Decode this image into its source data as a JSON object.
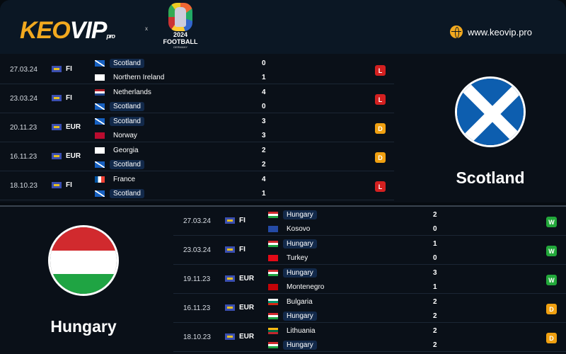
{
  "header": {
    "logo": "KEOVIP",
    "logo_suffix": "pro",
    "separator": "x",
    "euro_year": "2024",
    "euro_word": "FOOTBALL",
    "euro_country": "GERMANY",
    "site": "www.keovip.pro"
  },
  "colors": {
    "win": "#22a83a",
    "draw": "#f0a010",
    "loss": "#d42020",
    "accent": "#f2a91f"
  },
  "scotland": {
    "name": "Scotland",
    "matches": [
      {
        "date": "27.03.24",
        "comp": "FI",
        "home": "Scotland",
        "home_flag": "scotland",
        "away": "Northern Ireland",
        "away_flag": "england",
        "hs": "0",
        "as": "1",
        "res": "L",
        "hl": "home"
      },
      {
        "date": "23.03.24",
        "comp": "FI",
        "home": "Netherlands",
        "home_flag": "netherlands",
        "away": "Scotland",
        "away_flag": "scotland",
        "hs": "4",
        "as": "0",
        "res": "L",
        "hl": "away"
      },
      {
        "date": "20.11.23",
        "comp": "EUR",
        "home": "Scotland",
        "home_flag": "scotland",
        "away": "Norway",
        "away_flag": "norway",
        "hs": "3",
        "as": "3",
        "res": "D",
        "hl": "home"
      },
      {
        "date": "16.11.23",
        "comp": "EUR",
        "home": "Georgia",
        "home_flag": "georgia",
        "away": "Scotland",
        "away_flag": "scotland",
        "hs": "2",
        "as": "2",
        "res": "D",
        "hl": "away"
      },
      {
        "date": "18.10.23",
        "comp": "FI",
        "home": "France",
        "home_flag": "france",
        "away": "Scotland",
        "away_flag": "scotland",
        "hs": "4",
        "as": "1",
        "res": "L",
        "hl": "away"
      }
    ]
  },
  "hungary": {
    "name": "Hungary",
    "matches": [
      {
        "date": "27.03.24",
        "comp": "FI",
        "home": "Hungary",
        "home_flag": "hungary",
        "away": "Kosovo",
        "away_flag": "kosovo",
        "hs": "2",
        "as": "0",
        "res": "W",
        "hl": "home"
      },
      {
        "date": "23.03.24",
        "comp": "FI",
        "home": "Hungary",
        "home_flag": "hungary",
        "away": "Turkey",
        "away_flag": "turkey",
        "hs": "1",
        "as": "0",
        "res": "W",
        "hl": "home"
      },
      {
        "date": "19.11.23",
        "comp": "EUR",
        "home": "Hungary",
        "home_flag": "hungary",
        "away": "Montenegro",
        "away_flag": "montenegro",
        "hs": "3",
        "as": "1",
        "res": "W",
        "hl": "home"
      },
      {
        "date": "16.11.23",
        "comp": "EUR",
        "home": "Bulgaria",
        "home_flag": "bulgaria",
        "away": "Hungary",
        "away_flag": "hungary",
        "hs": "2",
        "as": "2",
        "res": "D",
        "hl": "away"
      },
      {
        "date": "18.10.23",
        "comp": "EUR",
        "home": "Lithuania",
        "home_flag": "lithuania",
        "away": "Hungary",
        "away_flag": "hungary",
        "hs": "2",
        "as": "2",
        "res": "D",
        "hl": "away"
      }
    ]
  }
}
